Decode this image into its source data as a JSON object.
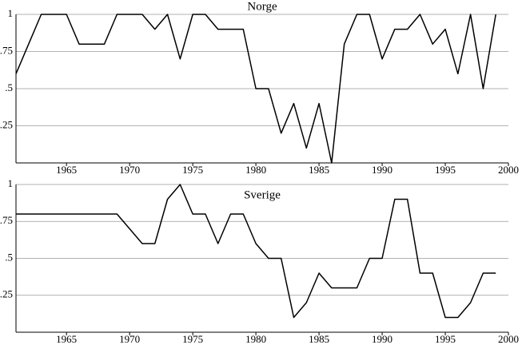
{
  "chart_data": [
    {
      "type": "line",
      "title": "Norge",
      "x": [
        1961,
        1962,
        1963,
        1964,
        1965,
        1966,
        1967,
        1968,
        1969,
        1970,
        1971,
        1972,
        1973,
        1974,
        1975,
        1976,
        1977,
        1978,
        1979,
        1980,
        1981,
        1982,
        1983,
        1984,
        1985,
        1986,
        1987,
        1988,
        1989,
        1990,
        1991,
        1992,
        1993,
        1994,
        1995,
        1996,
        1997,
        1998,
        1999
      ],
      "values": [
        0.6,
        0.8,
        1,
        1,
        1,
        0.8,
        0.8,
        0.8,
        1,
        1,
        1,
        0.9,
        1,
        0.7,
        1,
        1,
        0.9,
        0.9,
        0.9,
        0.5,
        0.5,
        0.2,
        0.4,
        0.1,
        0.4,
        0,
        0.8,
        1,
        1,
        0.7,
        0.9,
        0.9,
        1,
        0.8,
        0.9,
        0.6,
        1,
        0.5,
        1
      ],
      "color": "#000000",
      "xlim": [
        1961,
        2000
      ],
      "xticks": [
        1965,
        1970,
        1975,
        1980,
        1985,
        1990,
        1995,
        2000
      ],
      "ylim": [
        0,
        1
      ],
      "yticks": [
        {
          "value": 0.25,
          "label": ".25"
        },
        {
          "value": 0.5,
          "label": ".5"
        },
        {
          "value": 0.75,
          "label": ".75"
        },
        1
      ],
      "grid": true
    },
    {
      "type": "line",
      "title": "Sverige",
      "x": [
        1961,
        1962,
        1963,
        1964,
        1965,
        1966,
        1967,
        1968,
        1969,
        1970,
        1971,
        1972,
        1973,
        1974,
        1975,
        1976,
        1977,
        1978,
        1979,
        1980,
        1981,
        1982,
        1983,
        1984,
        1985,
        1986,
        1987,
        1988,
        1989,
        1990,
        1991,
        1992,
        1993,
        1994,
        1995,
        1996,
        1997,
        1998,
        1999
      ],
      "values": [
        0.8,
        0.8,
        0.8,
        0.8,
        0.8,
        0.8,
        0.8,
        0.8,
        0.8,
        0.7,
        0.6,
        0.6,
        0.9,
        1,
        0.8,
        0.8,
        0.6,
        0.8,
        0.8,
        0.6,
        0.5,
        0.5,
        0.1,
        0.2,
        0.4,
        0.3,
        0.3,
        0.3,
        0.5,
        0.5,
        0.9,
        0.9,
        0.4,
        0.4,
        0.1,
        0.1,
        0.2,
        0.4,
        0.4
      ],
      "color": "#000000",
      "xlim": [
        1961,
        2000
      ],
      "xticks": [
        1965,
        1970,
        1975,
        1980,
        1985,
        1990,
        1995,
        2000
      ],
      "ylim": [
        0,
        1
      ],
      "yticks": [
        {
          "value": 0.25,
          "label": ".25"
        },
        {
          "value": 0.5,
          "label": ".5"
        },
        {
          "value": 0.75,
          "label": ".75"
        },
        1
      ],
      "grid": true
    }
  ]
}
